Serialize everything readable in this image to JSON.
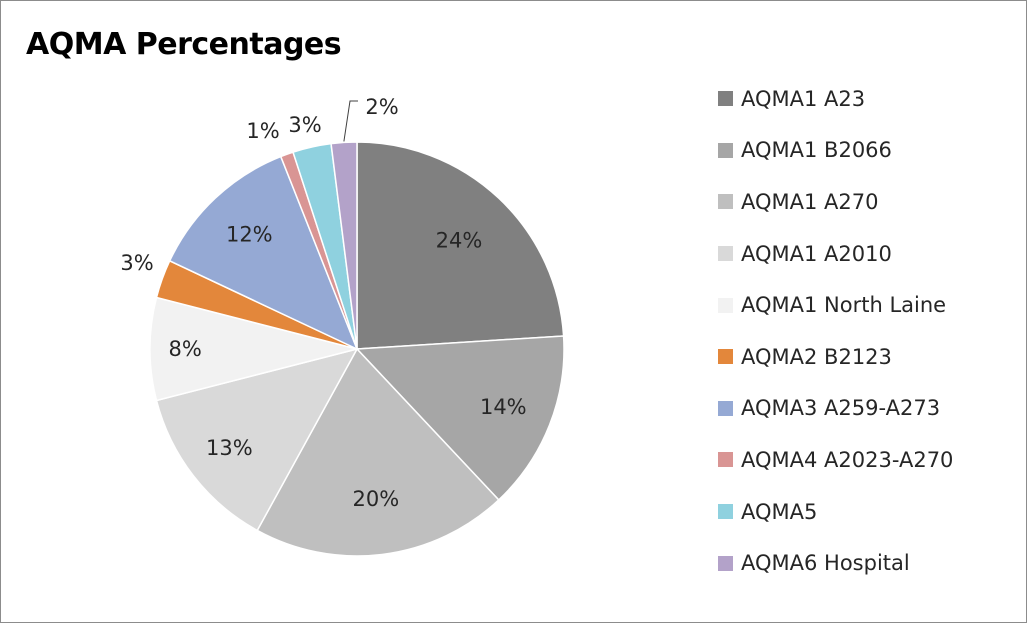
{
  "chart_data": {
    "type": "pie",
    "title": "AQMA Percentages",
    "legend_position": "right",
    "categories": [
      "AQMA1 A23",
      "AQMA1 B2066",
      "AQMA1 A270",
      "AQMA1 A2010",
      "AQMA1 North Laine",
      "AQMA2 B2123",
      "AQMA3 A259-A273",
      "AQMA4 A2023-A270",
      "AQMA5",
      "AQMA6 Hospital"
    ],
    "values": [
      24,
      14,
      20,
      13,
      8,
      3,
      12,
      1,
      3,
      2
    ],
    "data_labels": [
      "24%",
      "14%",
      "20%",
      "13%",
      "8%",
      "3%",
      "12%",
      "1%",
      "3%",
      "2%"
    ],
    "colors": [
      "#808080",
      "#a6a6a6",
      "#bfbfbf",
      "#d9d9d9",
      "#f2f2f2",
      "#e3873b",
      "#95a9d4",
      "#d99594",
      "#8fd1df",
      "#b3a2c9"
    ]
  }
}
